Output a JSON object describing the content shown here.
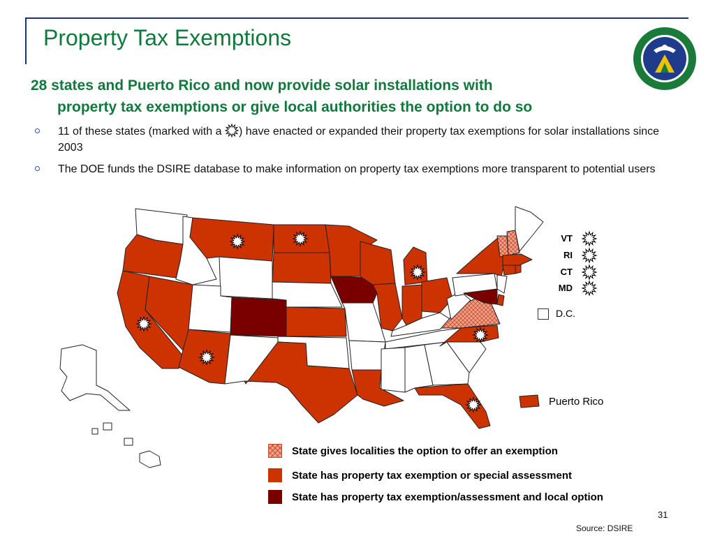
{
  "slide": {
    "title": "Property Tax Exemptions",
    "headline_line1": "28 states and Puerto Rico and now provide solar installations with",
    "headline_line2": "property tax exemptions or give local authorities the option to do so",
    "bullet1_before": "11 of these states (marked with a ",
    "bullet1_after": ") have enacted or expanded their property tax exemptions for solar installations since 2003",
    "bullet2": "The DOE funds the DSIRE database to make information on property tax exemptions more transparent to potential users",
    "page_number": "31",
    "source": "Source: DSIRE"
  },
  "map": {
    "small_states": [
      "VT",
      "RI",
      "CT",
      "MD"
    ],
    "dc_label": "D.C.",
    "pr_label": "Puerto Rico"
  },
  "legend": {
    "local_option": "State gives localities the option to offer an exemption",
    "exemption": "State has property tax exemption or special assessment",
    "both": "State has property tax exemption/assessment and local option"
  },
  "colors": {
    "title_green": "#0f7a3c",
    "exemption": "#cc3300",
    "both": "#7a0000",
    "local_option": "#f0a38c",
    "frame_blue": "#1b2e8a"
  },
  "icons": {
    "star": "sunburst-star-icon",
    "seal": "doe-seal-icon"
  }
}
